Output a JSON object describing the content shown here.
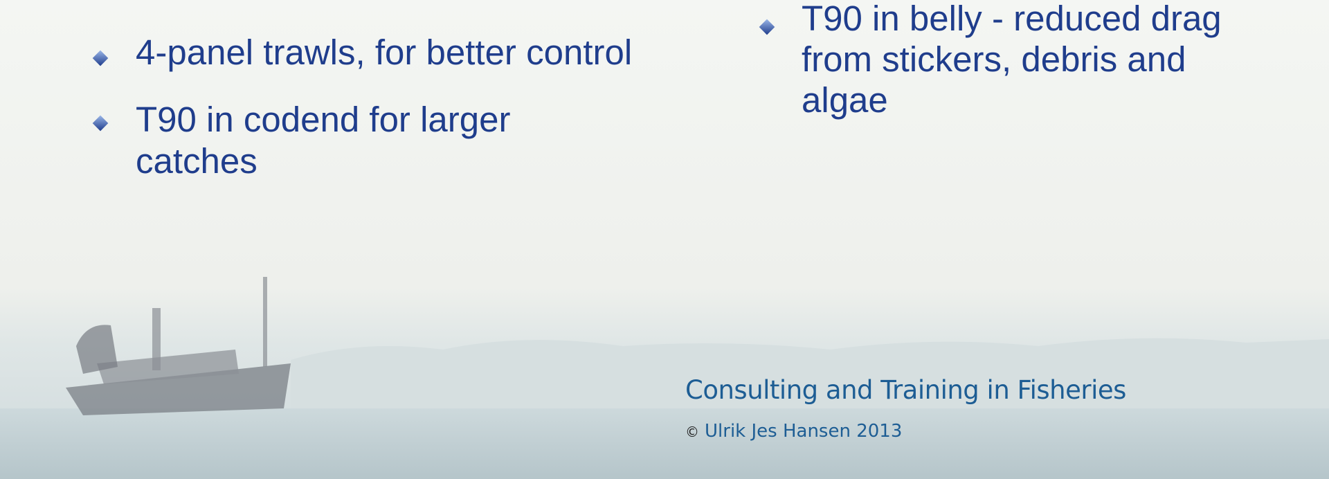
{
  "left_bullets": [
    {
      "lines": [
        "4-panel trawls, for better control"
      ]
    },
    {
      "lines": [
        "T90 in codend for larger",
        "catches"
      ]
    }
  ],
  "right_bullets": [
    {
      "lines": [
        "T90 in belly - reduced drag",
        "from stickers, debris and",
        "algae"
      ]
    }
  ],
  "footer": {
    "tagline": "Consulting and Training in Fisheries",
    "copyright_symbol": "©",
    "copyright": "Ulrik Jes Hansen 2013"
  }
}
